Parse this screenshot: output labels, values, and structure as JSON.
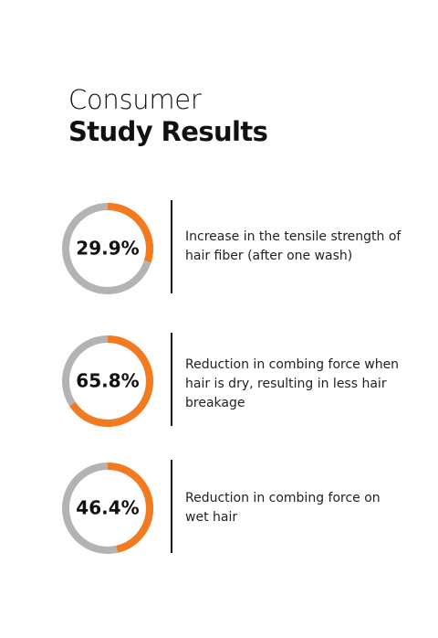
{
  "header": {
    "title_light": "Consumer",
    "title_bold": "Study Results"
  },
  "chart_data": [
    {
      "type": "donut",
      "values": [
        29.9
      ],
      "value_labels": [
        "29.9%"
      ],
      "color": "#f47a1f",
      "track_color": "#b3b3b3",
      "description": "Increase in the tensile strength of hair fiber (after one wash)"
    },
    {
      "type": "donut",
      "values": [
        65.8
      ],
      "value_labels": [
        "65.8%"
      ],
      "color": "#f47a1f",
      "track_color": "#b3b3b3",
      "description": "Reduction in combing force when hair is dry, resulting in less hair breakage"
    },
    {
      "type": "donut",
      "values": [
        46.4
      ],
      "value_labels": [
        "46.4%"
      ],
      "color": "#f47a1f",
      "track_color": "#b3b3b3",
      "description": "Reduction in combing force on wet hair"
    }
  ]
}
